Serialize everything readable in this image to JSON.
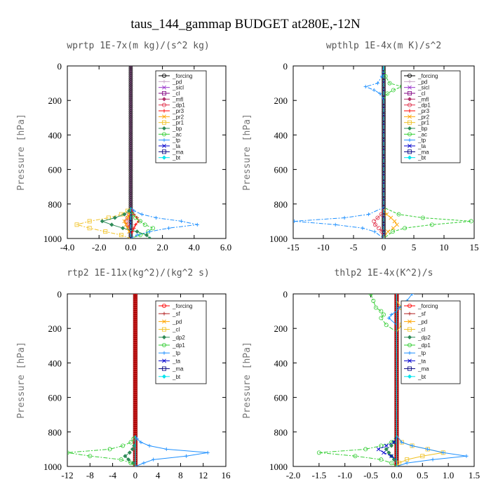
{
  "figure_title": "taus_144_gammap  BUDGET at280E,-12N",
  "chart_data": [
    {
      "type": "line",
      "title": "wprtp  1E-7x(m kg)/(s^2 kg)",
      "ylabel": "Pressure [hPa]",
      "xlim": [
        -4.0,
        6.0
      ],
      "xticks": [
        "-4.0",
        "-2.0",
        "0.0",
        "2.0",
        "4.0",
        "6.0"
      ],
      "xtick_values": [
        -4,
        -2,
        0,
        2,
        4,
        6
      ],
      "ylim": [
        1000,
        0
      ],
      "yticks": [
        "0",
        "200",
        "400",
        "600",
        "800",
        "1000"
      ],
      "ytick_values": [
        0,
        200,
        400,
        600,
        800,
        1000
      ],
      "legend_position": "top-right",
      "y": [
        820,
        840,
        860,
        880,
        900,
        920,
        940,
        960,
        980,
        1000
      ],
      "series": [
        {
          "name": "_forcing",
          "color": "#000000",
          "values": [
            0,
            0,
            0,
            0,
            0,
            0,
            0,
            0,
            0,
            0
          ]
        },
        {
          "name": "_pd",
          "color": "#c8a2c8",
          "values": [
            0,
            0,
            0,
            0,
            0,
            0,
            0,
            0,
            0,
            0
          ]
        },
        {
          "name": "_sicl",
          "color": "#9932cc",
          "values": [
            0,
            0,
            0,
            0,
            0,
            0,
            0,
            0,
            0,
            0
          ]
        },
        {
          "name": "_cl",
          "color": "#800080",
          "values": [
            0,
            0,
            0,
            0,
            0,
            0,
            0,
            0,
            0,
            0
          ]
        },
        {
          "name": "_mfl",
          "color": "#b0306a",
          "values": [
            0,
            0,
            0,
            0,
            0,
            0,
            0,
            0,
            0,
            0
          ]
        },
        {
          "name": "_dp1",
          "color": "#e0304a",
          "values": [
            0,
            0,
            -0.1,
            -0.2,
            -0.3,
            -0.2,
            -0.1,
            0,
            0,
            0
          ]
        },
        {
          "name": "_pr3",
          "color": "#ff0000",
          "values": [
            0,
            0.1,
            0.2,
            0.4,
            0.5,
            0.3,
            0.2,
            0.1,
            0,
            0
          ]
        },
        {
          "name": "_pr2",
          "color": "#ffa500",
          "values": [
            0,
            0,
            -0.1,
            -0.2,
            -0.4,
            -0.3,
            -0.2,
            -0.1,
            0,
            0
          ]
        },
        {
          "name": "_pr1",
          "color": "#f0c020",
          "values": [
            0,
            -0.2,
            -0.6,
            -1.4,
            -2.6,
            -3.4,
            -2.6,
            -1.6,
            -0.6,
            0
          ]
        },
        {
          "name": "_bp",
          "color": "#2e8b57",
          "values": [
            0,
            -0.1,
            -0.4,
            -1.0,
            -1.8,
            -1.2,
            -0.5,
            0.4,
            1.0,
            1.2
          ]
        },
        {
          "name": "_ac",
          "color": "#32cd32",
          "values": [
            0,
            0,
            0.1,
            0.3,
            0.6,
            0.9,
            1.4,
            1.1,
            0.6,
            0
          ]
        },
        {
          "name": "_tp",
          "color": "#1e90ff",
          "values": [
            0,
            0.2,
            0.7,
            1.6,
            3.2,
            4.2,
            2.4,
            1.2,
            0.4,
            0
          ]
        },
        {
          "name": "_ta",
          "color": "#0000cd",
          "values": [
            0,
            0,
            0,
            0,
            0,
            0,
            0,
            0,
            0,
            0
          ]
        },
        {
          "name": "_ma",
          "color": "#000080",
          "values": [
            0,
            0,
            0,
            0,
            0,
            0,
            0,
            0,
            0,
            0
          ]
        },
        {
          "name": "_bt",
          "color": "#00e5ee",
          "values": [
            0,
            0,
            0,
            0,
            0,
            0,
            0,
            0,
            0,
            0
          ]
        }
      ]
    },
    {
      "type": "line",
      "title": "wpthlp  1E-4x(m K)/s^2",
      "ylabel": "Pressure [hPa]",
      "xlim": [
        -15,
        15
      ],
      "xticks": [
        "-15",
        "-10",
        "-5",
        "0",
        "5",
        "10",
        "15"
      ],
      "xtick_values": [
        -15,
        -10,
        -5,
        0,
        5,
        10,
        15
      ],
      "ylim": [
        1000,
        0
      ],
      "yticks": [
        "0",
        "200",
        "400",
        "600",
        "800",
        "1000"
      ],
      "ytick_values": [
        0,
        200,
        400,
        600,
        800,
        1000
      ],
      "legend_position": "top-right",
      "y": [
        0,
        60,
        100,
        120,
        140,
        160,
        200,
        820,
        860,
        880,
        900,
        920,
        940,
        960,
        1000
      ],
      "series": [
        {
          "name": "_forcing",
          "color": "#000000",
          "values": [
            0,
            0,
            0,
            0,
            0,
            0,
            0,
            0,
            0,
            0,
            0,
            0,
            0,
            0,
            0
          ]
        },
        {
          "name": "_pd",
          "color": "#c8a2c8",
          "values": [
            0,
            0,
            0,
            0,
            0,
            0,
            0,
            0,
            0,
            0,
            0,
            0,
            0,
            0,
            0
          ]
        },
        {
          "name": "_sicl",
          "color": "#9932cc",
          "values": [
            0,
            0,
            0,
            0,
            0,
            0,
            0,
            0,
            0,
            0,
            0,
            0,
            0,
            0,
            0
          ]
        },
        {
          "name": "_cl",
          "color": "#800080",
          "values": [
            0,
            0,
            0,
            0,
            0,
            0,
            0,
            0,
            0,
            0,
            0,
            0,
            0,
            0,
            0
          ]
        },
        {
          "name": "_mfl",
          "color": "#b0306a",
          "values": [
            0,
            0,
            0,
            0,
            0,
            0,
            0,
            0,
            0,
            0,
            0,
            0,
            0,
            0,
            0
          ]
        },
        {
          "name": "_dp1",
          "color": "#e0304a",
          "values": [
            0,
            0,
            0,
            0,
            0,
            0,
            0,
            0,
            -0.4,
            -1,
            -1.6,
            -1.4,
            -0.8,
            -0.3,
            0
          ]
        },
        {
          "name": "_pr3",
          "color": "#ff0000",
          "values": [
            0,
            0,
            0,
            0,
            0,
            0,
            0,
            0,
            0,
            0,
            0,
            0,
            0,
            0,
            0
          ]
        },
        {
          "name": "_pr2",
          "color": "#ffa500",
          "values": [
            0,
            0,
            0,
            0,
            0,
            0,
            0,
            0,
            0.5,
            1.2,
            1.8,
            2.2,
            1.6,
            0.7,
            0
          ]
        },
        {
          "name": "_pr1",
          "color": "#f0c020",
          "values": [
            0,
            0,
            0,
            0,
            0,
            0,
            0,
            0,
            0,
            0,
            0,
            0,
            0,
            0,
            0
          ]
        },
        {
          "name": "_bp",
          "color": "#2e8b57",
          "values": [
            0,
            0,
            0,
            0,
            0,
            0,
            0,
            0,
            0,
            0,
            0,
            0,
            0,
            0,
            0
          ]
        },
        {
          "name": "_ac",
          "color": "#32cd32",
          "values": [
            0,
            0.3,
            1.0,
            3.0,
            1.6,
            0.6,
            0,
            0,
            2.5,
            6.5,
            14.5,
            8.0,
            3.5,
            1.5,
            0
          ]
        },
        {
          "name": "_tp",
          "color": "#1e90ff",
          "values": [
            0,
            -0.3,
            -1.0,
            -3.0,
            -1.6,
            -0.6,
            0,
            0,
            -2.5,
            -6.5,
            -14.8,
            -8.0,
            -3.5,
            -1.5,
            0
          ]
        },
        {
          "name": "_ta",
          "color": "#0000cd",
          "values": [
            0,
            0,
            0,
            0,
            0,
            0,
            0,
            0,
            0,
            0,
            0,
            0,
            0,
            0,
            0
          ]
        },
        {
          "name": "_ma",
          "color": "#000080",
          "values": [
            0,
            0,
            0,
            0,
            0,
            0,
            0,
            0,
            0,
            0,
            0,
            0,
            0,
            0,
            0
          ]
        },
        {
          "name": "_bt",
          "color": "#00e5ee",
          "values": [
            0,
            0,
            0,
            0,
            0,
            0,
            0,
            0,
            0,
            0,
            0,
            0,
            0,
            0,
            0
          ]
        }
      ]
    },
    {
      "type": "line",
      "title": "rtp2  1E-11x(kg^2)/(kg^2 s)",
      "ylabel": "Pressure [hPa]",
      "xlim": [
        -12,
        16
      ],
      "xticks": [
        "-12",
        "-8",
        "-4",
        "0",
        "4",
        "8",
        "12",
        "16"
      ],
      "xtick_values": [
        -12,
        -8,
        -4,
        0,
        4,
        8,
        12,
        16
      ],
      "ylim": [
        1000,
        0
      ],
      "yticks": [
        "0",
        "200",
        "400",
        "600",
        "800",
        "1000"
      ],
      "ytick_values": [
        0,
        200,
        400,
        600,
        800,
        1000
      ],
      "legend_position": "top-right",
      "y": [
        820,
        840,
        860,
        880,
        900,
        920,
        940,
        960,
        980,
        1000
      ],
      "series": [
        {
          "name": "_forcing",
          "color": "#ff0000",
          "values": [
            0,
            0,
            0,
            0,
            0,
            0,
            0,
            0,
            0,
            0
          ]
        },
        {
          "name": "_sf",
          "color": "#b22222",
          "values": [
            0,
            0,
            0,
            0,
            0,
            0,
            0,
            0,
            0,
            0
          ]
        },
        {
          "name": "_pd",
          "color": "#ffa500",
          "values": [
            0,
            0,
            0,
            0,
            0,
            0,
            0,
            0,
            0,
            0
          ]
        },
        {
          "name": "_cl",
          "color": "#f0c020",
          "values": [
            0,
            0,
            0,
            0,
            0,
            0,
            0,
            0,
            0,
            0
          ]
        },
        {
          "name": "_dp2",
          "color": "#2e8b57",
          "values": [
            0,
            0,
            0,
            -0.2,
            -0.5,
            -1.0,
            -1.8,
            -1.2,
            -0.4,
            0
          ]
        },
        {
          "name": "_dp1",
          "color": "#32cd32",
          "values": [
            0,
            -0.3,
            -0.8,
            -2.2,
            -4.5,
            -12.0,
            -8.0,
            -2.5,
            -0.8,
            0
          ]
        },
        {
          "name": "_tp",
          "color": "#1e90ff",
          "values": [
            0,
            0.3,
            1.0,
            2.5,
            5.5,
            12.8,
            9.0,
            3.2,
            1.5,
            0
          ]
        },
        {
          "name": "_ta",
          "color": "#0000cd",
          "values": [
            0,
            0,
            0,
            0,
            0,
            0,
            0,
            0,
            0,
            0
          ]
        },
        {
          "name": "_ma",
          "color": "#000080",
          "values": [
            0,
            0,
            0,
            0,
            0,
            0,
            0,
            0,
            0,
            0
          ]
        },
        {
          "name": "_bt",
          "color": "#00e5ee",
          "values": [
            0,
            0,
            0,
            0,
            0,
            0,
            0,
            0,
            0,
            0
          ]
        }
      ]
    },
    {
      "type": "line",
      "title": "thlp2  1E-4x(K^2)/s",
      "ylabel": "Pressure [hPa]",
      "xlim": [
        -2.0,
        1.5
      ],
      "xticks": [
        "-2.0",
        "-1.5",
        "-1.0",
        "-0.5",
        "0.0",
        "0.5",
        "1.0",
        "1.5"
      ],
      "xtick_values": [
        -2.0,
        -1.5,
        -1.0,
        -0.5,
        0.0,
        0.5,
        1.0,
        1.5
      ],
      "ylim": [
        1000,
        0
      ],
      "yticks": [
        "0",
        "200",
        "400",
        "600",
        "800",
        "1000"
      ],
      "ytick_values": [
        0,
        200,
        400,
        600,
        800,
        1000
      ],
      "legend_position": "top-right",
      "y": [
        0,
        40,
        80,
        100,
        120,
        140,
        180,
        220,
        820,
        860,
        880,
        900,
        920,
        940,
        960,
        980,
        1000
      ],
      "series": [
        {
          "name": "_forcing",
          "color": "#ff0000",
          "values": [
            0,
            0,
            0,
            0,
            0,
            0,
            0,
            0,
            0,
            0,
            0,
            0,
            0,
            0,
            0,
            0,
            0
          ]
        },
        {
          "name": "_sf",
          "color": "#b22222",
          "values": [
            0,
            0,
            0,
            0,
            0,
            0,
            0,
            0,
            0,
            0,
            0,
            0,
            0,
            0,
            0,
            0,
            0
          ]
        },
        {
          "name": "_pd",
          "color": "#ffa500",
          "values": [
            0,
            0,
            0,
            0,
            0,
            0,
            0,
            0,
            0,
            0,
            0,
            0,
            0,
            0,
            0,
            0,
            0
          ]
        },
        {
          "name": "_cl",
          "color": "#f0c020",
          "values": [
            0,
            0,
            0.1,
            0.3,
            0.45,
            0.3,
            0.1,
            0,
            0,
            0.1,
            0.3,
            0.6,
            0.9,
            0.5,
            0.2,
            0.05,
            0
          ]
        },
        {
          "name": "_dp2",
          "color": "#2e8b57",
          "values": [
            0,
            0,
            0,
            0,
            0,
            0,
            0,
            0,
            0,
            -0.05,
            -0.1,
            -0.2,
            -0.15,
            -0.1,
            -0.05,
            0,
            0
          ]
        },
        {
          "name": "_dp1",
          "color": "#32cd32",
          "values": [
            -0.5,
            -0.45,
            -0.4,
            -0.3,
            -0.25,
            -0.3,
            -0.2,
            0,
            0,
            -0.1,
            -0.3,
            -0.6,
            -1.5,
            -0.8,
            -0.3,
            -0.1,
            0
          ]
        },
        {
          "name": "_tp",
          "color": "#1e90ff",
          "values": [
            0.3,
            0.2,
            0.05,
            0,
            -0.1,
            -0.15,
            0,
            0,
            0,
            0.1,
            0.3,
            0.6,
            0.9,
            1.35,
            0.7,
            0.2,
            0
          ]
        },
        {
          "name": "_ta",
          "color": "#0000cd",
          "values": [
            0,
            0,
            0,
            0,
            0,
            0,
            0,
            0,
            0,
            -0.05,
            -0.2,
            -0.35,
            -0.25,
            -0.1,
            0,
            0,
            0
          ]
        },
        {
          "name": "_ma",
          "color": "#000080",
          "values": [
            0,
            0,
            0,
            0,
            0,
            0,
            0,
            0,
            0,
            0,
            0,
            0,
            0,
            0,
            0,
            0,
            0
          ]
        },
        {
          "name": "_bt",
          "color": "#00e5ee",
          "values": [
            0,
            0,
            0,
            0,
            0,
            0,
            0,
            0,
            0,
            0,
            0,
            0,
            0,
            0,
            0,
            0,
            0
          ]
        }
      ]
    }
  ]
}
